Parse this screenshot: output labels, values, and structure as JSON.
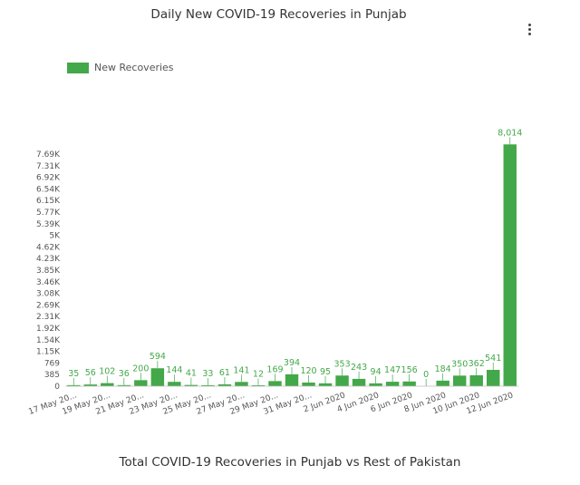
{
  "header": {
    "title": "Daily New COVID-19 Recoveries in Punjab",
    "menu_icon": "more-vert-icon"
  },
  "footer": {
    "next_chart_title": "Total COVID-19 Recoveries in Punjab vs Rest of Pakistan"
  },
  "colors": {
    "bar": "#43a849",
    "label": "#43a849"
  },
  "chart_data": {
    "type": "bar",
    "title": "Daily New COVID-19 Recoveries in Punjab",
    "legend": {
      "position": "top-left",
      "entries": [
        "New Recoveries"
      ]
    },
    "series": [
      {
        "name": "New Recoveries",
        "values": [
          35,
          56,
          102,
          36,
          200,
          594,
          144,
          41,
          33,
          61,
          141,
          12,
          169,
          394,
          120,
          95,
          353,
          243,
          94,
          147,
          156,
          0,
          184,
          350,
          362,
          541,
          8014
        ]
      }
    ],
    "categories": [
      "17 May 20...",
      "",
      "19 May 20...",
      "",
      "21 May 20...",
      "",
      "23 May 20...",
      "",
      "25 May 20...",
      "",
      "27 May 20...",
      "",
      "29 May 20...",
      "",
      "31 May 20...",
      "",
      "2 Jun 2020",
      "",
      "4 Jun 2020",
      "",
      "6 Jun 2020",
      "",
      "8 Jun 2020",
      "",
      "10 Jun 2020",
      "",
      "12 Jun 2020"
    ],
    "y_ticks": [
      "0",
      "385",
      "769",
      "1.15K",
      "1.54K",
      "1.92K",
      "2.31K",
      "2.69K",
      "3.08K",
      "3.46K",
      "3.85K",
      "4.23K",
      "4.62K",
      "5K",
      "5.39K",
      "5.77K",
      "6.15K",
      "6.54K",
      "6.92K",
      "7.31K",
      "7.69K"
    ],
    "y_tick_step": 384.6,
    "ylim": [
      0,
      7692
    ],
    "grid": false,
    "data_labels": [
      "35",
      "56",
      "102",
      "36",
      "200",
      "594",
      "144",
      "41",
      "33",
      "61",
      "141",
      "12",
      "169",
      "394",
      "120",
      "95",
      "353",
      "243",
      "94",
      "147",
      "156",
      "0",
      "184",
      "350",
      "362",
      "541",
      "8,014"
    ]
  }
}
